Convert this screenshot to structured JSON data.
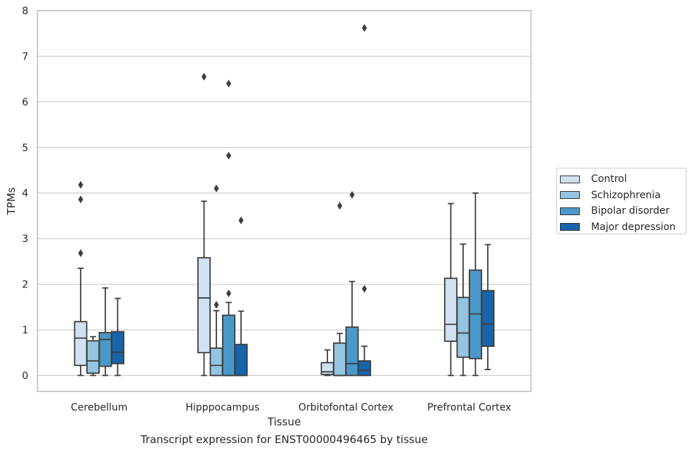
{
  "chart_data": {
    "type": "box",
    "xlabel": "Tissue",
    "ylabel": "TPMs",
    "caption": "Transcript expression for ENST00000496465 by tissue",
    "ylim": [
      -0.35,
      8
    ],
    "yticks": [
      0,
      1,
      2,
      3,
      4,
      5,
      6,
      7,
      8
    ],
    "grid": "horizontal",
    "legend_position": "right",
    "categories": [
      "Cerebellum",
      "Hipppocampus",
      "Orbitofontal Cortex",
      "Prefrontal Cortex"
    ],
    "series": [
      {
        "name": "Control",
        "color": "#d0e1f2",
        "boxes": [
          {
            "whislo": 0,
            "q1": 0.22,
            "med": 0.82,
            "q3": 1.18,
            "whishi": 2.35,
            "fliers": [
              2.68,
              3.86,
              4.18
            ]
          },
          {
            "whislo": 0,
            "q1": 0.5,
            "med": 1.7,
            "q3": 2.58,
            "whishi": 3.82,
            "fliers": [
              6.55
            ]
          },
          {
            "whislo": 0,
            "q1": 0.02,
            "med": 0.08,
            "q3": 0.28,
            "whishi": 0.56,
            "fliers": []
          },
          {
            "whislo": 0,
            "q1": 0.75,
            "med": 1.12,
            "q3": 2.13,
            "whishi": 3.77,
            "fliers": []
          }
        ]
      },
      {
        "name": "Schizophrenia",
        "color": "#94c4df",
        "boxes": [
          {
            "whislo": 0,
            "q1": 0.05,
            "med": 0.32,
            "q3": 0.76,
            "whishi": 0.85,
            "fliers": []
          },
          {
            "whislo": 0,
            "q1": 0.0,
            "med": 0.22,
            "q3": 0.6,
            "whishi": 1.42,
            "fliers": [
              1.55,
              4.1
            ]
          },
          {
            "whislo": 0,
            "q1": 0.0,
            "med": 0.0,
            "q3": 0.71,
            "whishi": 0.92,
            "fliers": [
              3.72
            ]
          },
          {
            "whislo": 0,
            "q1": 0.4,
            "med": 0.93,
            "q3": 1.71,
            "whishi": 2.88,
            "fliers": []
          }
        ]
      },
      {
        "name": "Bipolar disorder",
        "color": "#4a98c9",
        "boxes": [
          {
            "whislo": 0,
            "q1": 0.2,
            "med": 0.79,
            "q3": 0.94,
            "whishi": 1.92,
            "fliers": []
          },
          {
            "whislo": 0,
            "q1": 0.0,
            "med": 0.0,
            "q3": 1.32,
            "whishi": 1.6,
            "fliers": [
              1.8,
              4.82,
              6.4
            ]
          },
          {
            "whislo": 0,
            "q1": 0.0,
            "med": 0.26,
            "q3": 1.06,
            "whishi": 2.06,
            "fliers": [
              3.96
            ]
          },
          {
            "whislo": 0,
            "q1": 0.37,
            "med": 1.35,
            "q3": 2.31,
            "whishi": 4.0,
            "fliers": []
          }
        ]
      },
      {
        "name": "Major depression",
        "color": "#1764ab",
        "boxes": [
          {
            "whislo": 0,
            "q1": 0.26,
            "med": 0.51,
            "q3": 0.96,
            "whishi": 1.69,
            "fliers": []
          },
          {
            "whislo": 0,
            "q1": 0.0,
            "med": 0.0,
            "q3": 0.68,
            "whishi": 1.41,
            "fliers": [
              3.4
            ]
          },
          {
            "whislo": 0,
            "q1": 0.0,
            "med": 0.11,
            "q3": 0.32,
            "whishi": 0.64,
            "fliers": [
              1.9,
              7.62
            ]
          },
          {
            "whislo": 0.13,
            "q1": 0.64,
            "med": 1.13,
            "q3": 1.86,
            "whishi": 2.87,
            "fliers": []
          }
        ]
      }
    ]
  }
}
